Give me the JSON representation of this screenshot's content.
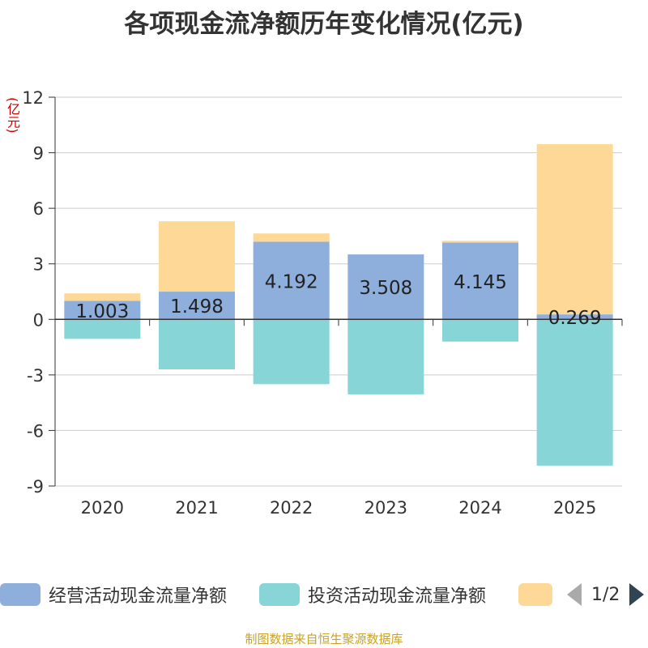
{
  "chart_data": {
    "type": "bar",
    "stacked": true,
    "title": "各项现金流净额历年变化情况(亿元)",
    "ylabel": "(亿元)",
    "categories": [
      "2020",
      "2021",
      "2022",
      "2023",
      "2024",
      "2025"
    ],
    "yticks": [
      12,
      9,
      6,
      3,
      0,
      -3,
      -6,
      -9
    ],
    "ylim": [
      -9,
      12
    ],
    "series": [
      {
        "name": "经营活动现金流量净额",
        "color": "#8eaedc",
        "values": [
          1.003,
          1.498,
          4.192,
          3.508,
          4.145,
          0.269
        ]
      },
      {
        "name": "投资活动现金流量净额",
        "color": "#87d5d7",
        "values": [
          -1.05,
          -2.7,
          -3.5,
          -4.05,
          -1.2,
          -7.9
        ]
      },
      {
        "name": "",
        "color": "#fdd897",
        "values": [
          0.4,
          3.8,
          0.45,
          0.0,
          0.1,
          9.2
        ]
      }
    ],
    "data_labels": [
      "1.003",
      "1.498",
      "4.192",
      "3.508",
      "4.145",
      "0.269"
    ]
  },
  "legend": {
    "items": [
      {
        "label": "经营活动现金流量净额",
        "color": "#8eaedc"
      },
      {
        "label": "投资活动现金流量净额",
        "color": "#87d5d7"
      },
      {
        "label": "",
        "color": "#fdd897"
      }
    ],
    "pager": "1/2"
  },
  "source": "制图数据来自恒生聚源数据库"
}
